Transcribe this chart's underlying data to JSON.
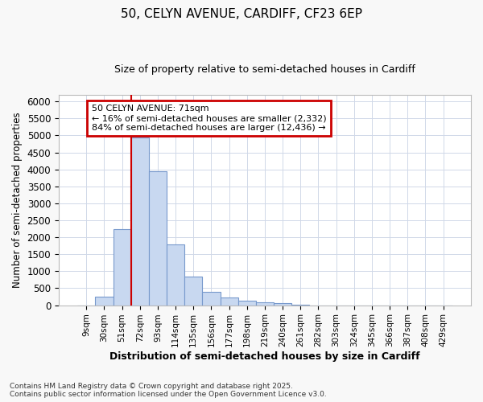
{
  "title_line1": "50, CELYN AVENUE, CARDIFF, CF23 6EP",
  "title_line2": "Size of property relative to semi-detached houses in Cardiff",
  "xlabel": "Distribution of semi-detached houses by size in Cardiff",
  "ylabel": "Number of semi-detached properties",
  "categories": [
    "9sqm",
    "30sqm",
    "51sqm",
    "72sqm",
    "93sqm",
    "114sqm",
    "135sqm",
    "156sqm",
    "177sqm",
    "198sqm",
    "219sqm",
    "240sqm",
    "261sqm",
    "282sqm",
    "303sqm",
    "324sqm",
    "345sqm",
    "366sqm",
    "387sqm",
    "408sqm",
    "429sqm"
  ],
  "values": [
    0,
    250,
    2250,
    4950,
    3950,
    1800,
    850,
    400,
    230,
    130,
    80,
    60,
    25,
    0,
    0,
    0,
    0,
    0,
    0,
    0,
    0
  ],
  "bar_color": "#c8d8f0",
  "bar_edge_color": "#7799cc",
  "vline_pos": 3,
  "vline_color": "#cc0000",
  "annotation_line1": "50 CELYN AVENUE: 71sqm",
  "annotation_line2": "← 16% of semi-detached houses are smaller (2,332)",
  "annotation_line3": "84% of semi-detached houses are larger (12,436) →",
  "anno_box_facecolor": "#ffffff",
  "anno_box_edgecolor": "#cc0000",
  "grid_color": "#d0d8e8",
  "bg_color": "#ffffff",
  "fig_bg_color": "#f8f8f8",
  "ylim": [
    0,
    6200
  ],
  "yticks": [
    0,
    500,
    1000,
    1500,
    2000,
    2500,
    3000,
    3500,
    4000,
    4500,
    5000,
    5500,
    6000
  ],
  "footer_line1": "Contains HM Land Registry data © Crown copyright and database right 2025.",
  "footer_line2": "Contains public sector information licensed under the Open Government Licence v3.0."
}
